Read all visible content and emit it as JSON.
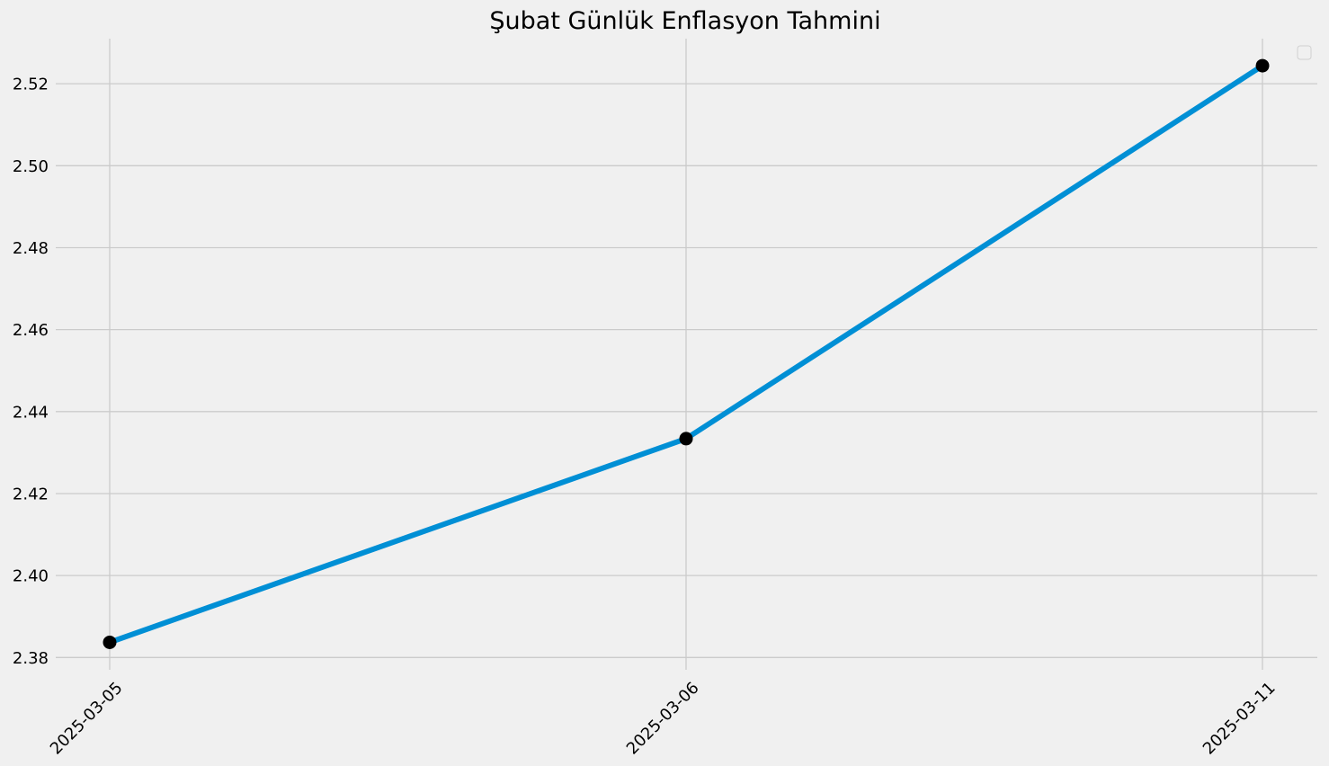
{
  "chart_data": {
    "type": "line",
    "title": "Şubat Günlük Enflasyon Tahmini",
    "xlabel": "",
    "ylabel": "",
    "x": [
      "2025-03-05",
      "2025-03-06",
      "2025-03-11"
    ],
    "series": [
      {
        "values": [
          2.3837,
          2.4334,
          2.5244
        ],
        "color": "#008fd5",
        "marker_color": "#000000"
      }
    ],
    "ylim": [
      2.377,
      2.531
    ],
    "yticks": [
      2.38,
      2.4,
      2.42,
      2.44,
      2.46,
      2.48,
      2.5,
      2.52
    ],
    "ytick_labels": [
      "2.38",
      "2.40",
      "2.42",
      "2.44",
      "2.46",
      "2.48",
      "2.50",
      "2.52"
    ],
    "xtick_labels": [
      "2025-03-05",
      "2025-03-06",
      "2025-03-11"
    ],
    "xtick_rotation": 45,
    "grid": true,
    "legend": {
      "placement": "top-right",
      "entries": []
    },
    "background_color": "#f0f0f0",
    "grid_color": "#cbcbcb"
  }
}
